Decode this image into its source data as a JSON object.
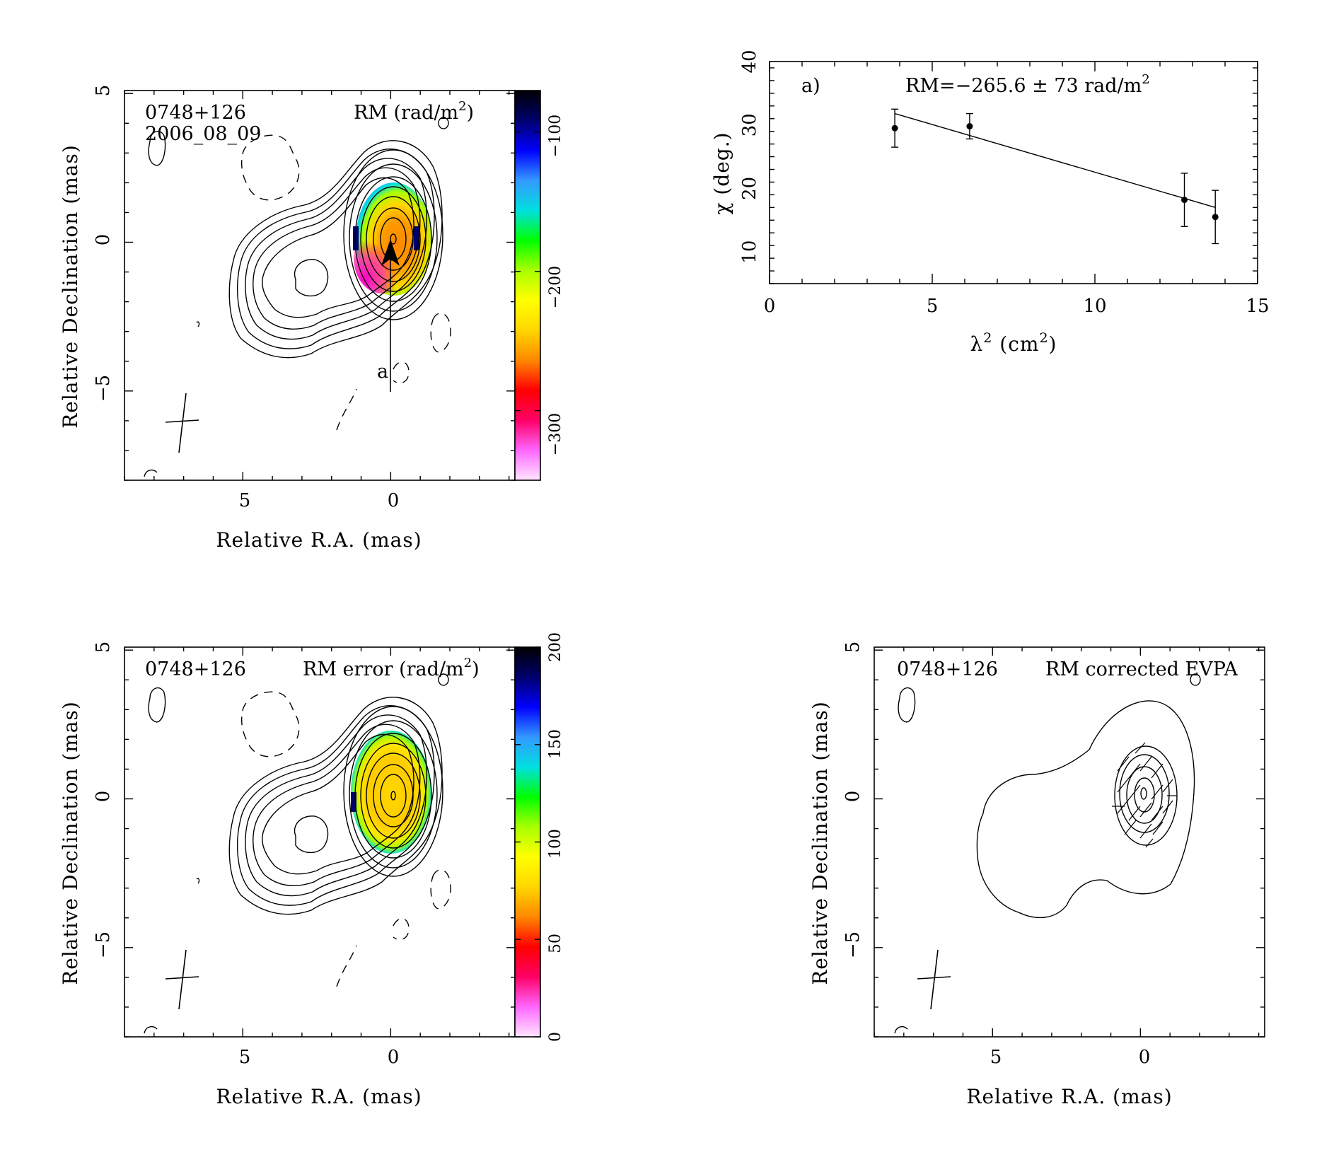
{
  "colors": {
    "rm_scale": [
      "#ffe6ff",
      "#ff66ff",
      "#ff0066",
      "#ff0000",
      "#ff8800",
      "#ffd700",
      "#ffff00",
      "#aaff00",
      "#00ff00",
      "#00e0e0",
      "#3399ff",
      "#0000ff",
      "#00006e",
      "#000000"
    ],
    "ink": "#000000",
    "background": "#ffffff"
  },
  "panel_rm": {
    "source": "0748+126",
    "epoch": "2006_08_09",
    "map_title": "RM (rad/m",
    "map_title_sup": "2",
    "map_title_end": ")",
    "xlabel": "Relative R.A. (mas)",
    "ylabel": "Relative Declination (mas)",
    "xticks": [
      "5",
      "0"
    ],
    "yticks": [
      "5",
      "0",
      "−5"
    ],
    "colorbar_ticks": [
      "−100",
      "−200",
      "−300"
    ],
    "slice_label": "a"
  },
  "panel_err": {
    "source": "0748+126",
    "map_title": "RM error (rad/m",
    "map_title_sup": "2",
    "map_title_end": ")",
    "xlabel": "Relative R.A. (mas)",
    "ylabel": "Relative Declination (mas)",
    "xticks": [
      "5",
      "0"
    ],
    "yticks": [
      "5",
      "0",
      "−5"
    ],
    "colorbar_ticks": [
      "0",
      "50",
      "100",
      "150",
      "200"
    ]
  },
  "panel_evpa": {
    "source": "0748+126",
    "map_title": "RM corrected EVPA",
    "xlabel": "Relative R.A. (mas)",
    "ylabel": "Relative Declination (mas)",
    "xticks": [
      "5",
      "0"
    ],
    "yticks": [
      "5",
      "0",
      "−5"
    ]
  },
  "chart_data": [
    {
      "type": "scatter",
      "panel": "RM fit",
      "label": "a)",
      "annotation": "RM=−265.6 ± 73 rad/m",
      "annotation_sup": "2",
      "xlabel": "λ",
      "xlabel_sup": "2",
      "xlabel_end": " (cm",
      "xlabel_sup2": "2",
      "xlabel_close": ")",
      "ylabel": "χ (deg.)",
      "xlim": [
        0,
        15
      ],
      "ylim": [
        5,
        40
      ],
      "xticks": [
        0,
        5,
        10,
        15
      ],
      "yticks": [
        10,
        20,
        30,
        40
      ],
      "points": [
        {
          "x": 3.85,
          "y": 29.5,
          "err": 3.0
        },
        {
          "x": 6.15,
          "y": 29.8,
          "err": 2.0
        },
        {
          "x": 12.75,
          "y": 18.2,
          "err": 4.2
        },
        {
          "x": 13.7,
          "y": 15.5,
          "err": 4.2
        }
      ],
      "fit": {
        "x": [
          3.85,
          13.7
        ],
        "y": [
          31.8,
          17.0
        ]
      }
    },
    {
      "type": "heatmap",
      "panel": "RM map",
      "quantity": "RM (rad/m2)",
      "colorbar_range": [
        -350,
        -70
      ],
      "colorbar_ticks": [
        -100,
        -200,
        -300
      ],
      "xlim": [
        9,
        -4.2
      ],
      "ylim": [
        -8,
        5.1
      ]
    },
    {
      "type": "heatmap",
      "panel": "RM error map",
      "quantity": "RM error (rad/m2)",
      "colorbar_range": [
        0,
        200
      ],
      "colorbar_ticks": [
        0,
        50,
        100,
        150,
        200
      ],
      "xlim": [
        9,
        -4.2
      ],
      "ylim": [
        -8,
        5.1
      ]
    }
  ]
}
